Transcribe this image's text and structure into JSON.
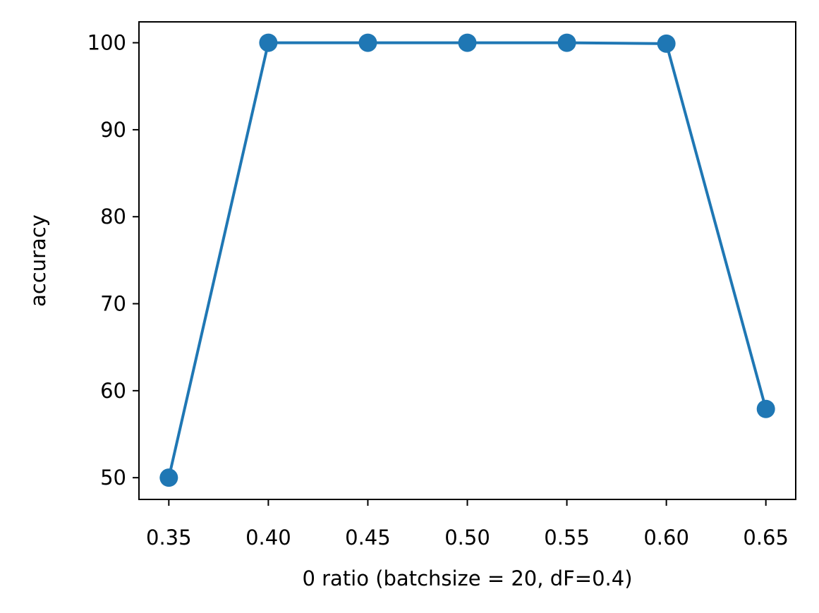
{
  "chart_data": {
    "type": "line",
    "title": "",
    "xlabel": "0 ratio (batchsize = 20, dF=0.4)",
    "ylabel": "accuracy",
    "x": [
      0.35,
      0.4,
      0.45,
      0.5,
      0.55,
      0.6,
      0.65
    ],
    "series": [
      {
        "values": [
          50.0,
          100.0,
          100.0,
          100.0,
          100.0,
          99.9,
          57.9
        ],
        "color": "#1f77b4",
        "marker": "circle"
      }
    ],
    "xticks": [
      0.35,
      0.4,
      0.45,
      0.5,
      0.55,
      0.6,
      0.65
    ],
    "xtick_labels": [
      "0.35",
      "0.40",
      "0.45",
      "0.50",
      "0.55",
      "0.60",
      "0.65"
    ],
    "yticks": [
      50,
      60,
      70,
      80,
      90,
      100
    ],
    "ytick_labels": [
      "50",
      "60",
      "70",
      "80",
      "90",
      "100"
    ],
    "xlim": [
      0.335,
      0.665
    ],
    "ylim": [
      47.5,
      102.4
    ],
    "grid": false,
    "legend": "none"
  }
}
